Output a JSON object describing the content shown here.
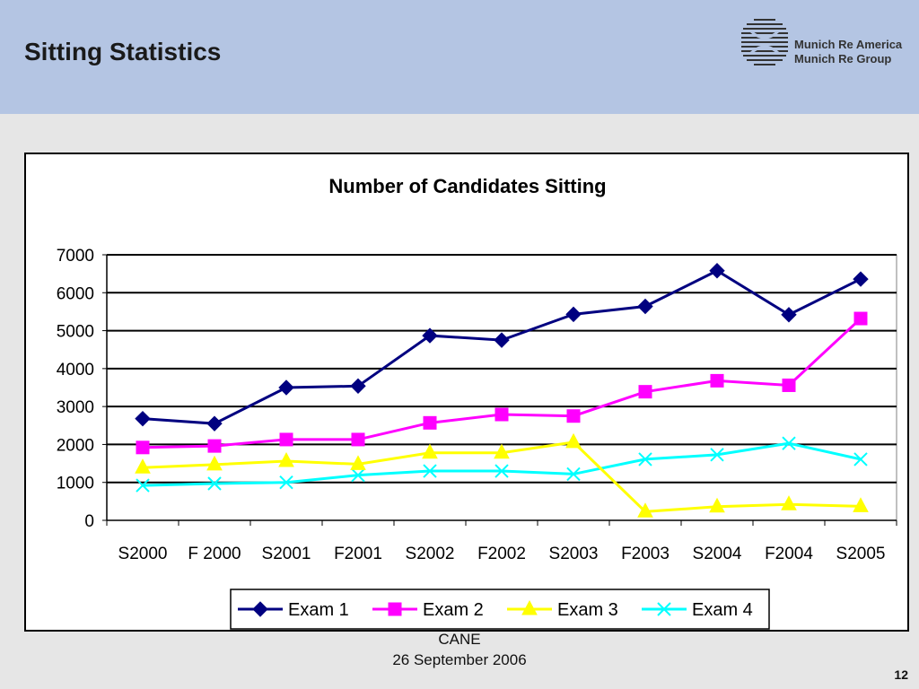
{
  "header": {
    "title": "Sitting Statistics",
    "logo_line1": "Munich Re America",
    "logo_line2": "Munich Re Group",
    "background_color": "#b4c5e3"
  },
  "footer": {
    "event": "CANE",
    "date": "26 September 2006",
    "page_number": "12"
  },
  "chart_data": {
    "type": "line",
    "title": "Number of Candidates Sitting",
    "xlabel": "",
    "ylabel": "",
    "categories": [
      "S2000",
      "F 2000",
      "S2001",
      "F2001",
      "S2002",
      "F2002",
      "S2003",
      "F2003",
      "S2004",
      "F2004",
      "S2005"
    ],
    "ylim": [
      0,
      7000
    ],
    "yticks": [
      0,
      1000,
      2000,
      3000,
      4000,
      5000,
      6000,
      7000
    ],
    "grid": true,
    "legend": "bottom",
    "series": [
      {
        "name": "Exam 1",
        "color": "#000080",
        "marker": "diamond",
        "values": [
          2680,
          2550,
          3500,
          3540,
          4870,
          4750,
          5430,
          5640,
          6580,
          5420,
          6360
        ]
      },
      {
        "name": "Exam 2",
        "color": "#ff00ff",
        "marker": "square",
        "values": [
          1920,
          1960,
          2130,
          2130,
          2570,
          2790,
          2750,
          3390,
          3680,
          3560,
          5320
        ]
      },
      {
        "name": "Exam 3",
        "color": "#ffff00",
        "marker": "triangle",
        "values": [
          1390,
          1470,
          1560,
          1480,
          1780,
          1780,
          2060,
          230,
          360,
          420,
          370
        ]
      },
      {
        "name": "Exam 4",
        "color": "#00ffff",
        "marker": "x",
        "values": [
          920,
          970,
          1000,
          1190,
          1300,
          1300,
          1220,
          1610,
          1730,
          2030,
          1610
        ]
      }
    ]
  }
}
